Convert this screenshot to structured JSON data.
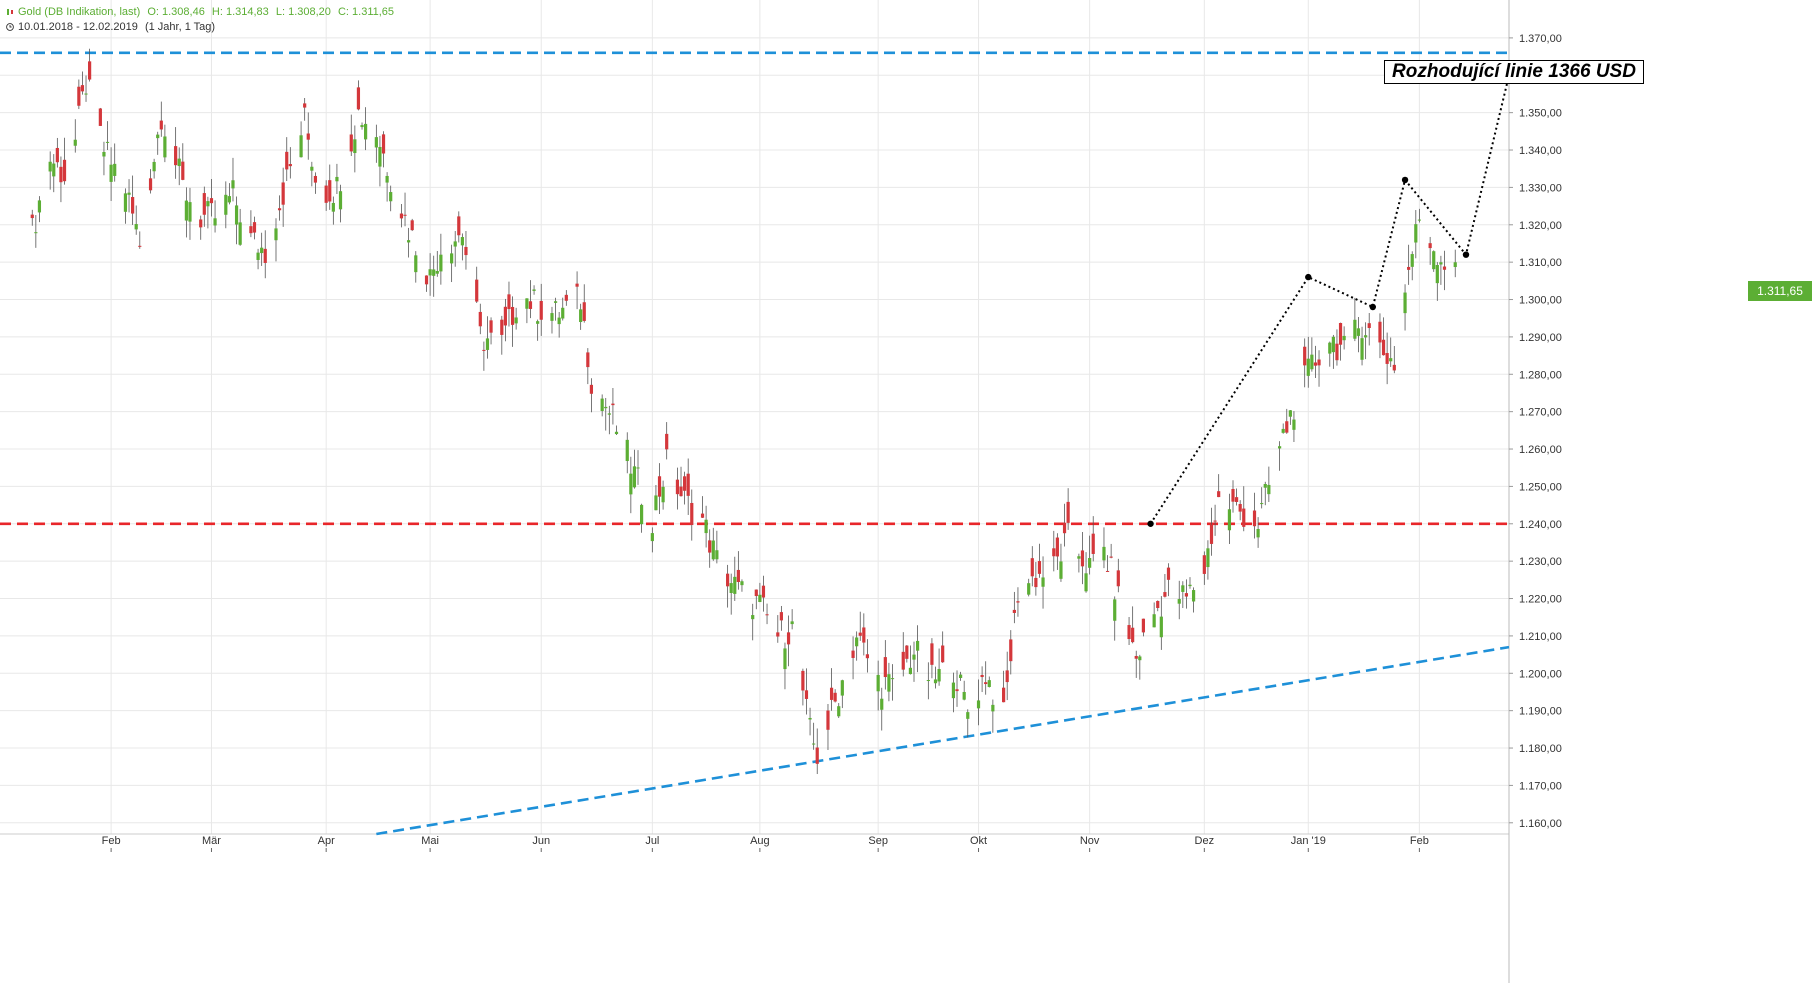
{
  "header": {
    "instrument": "Gold (DB Indikation, last)",
    "open": "O: 1.308,46",
    "high": "H: 1.314,83",
    "low": "L: 1.308,20",
    "close": "C: 1.311,65",
    "date_range": "10.01.2018 - 12.02.2019",
    "period": "(1 Jahr, 1 Tag)"
  },
  "annotation": "Rozhodující linie 1366 USD",
  "last_price_label": "1.311,65",
  "colors": {
    "up": "#5cae34",
    "down": "#d4373b",
    "support_line": "#1e90d8",
    "level_line": "#e8262a",
    "grid": "#e8e8e8"
  },
  "chart_data": {
    "type": "candlestick",
    "title": "Gold (DB Indikation, last)",
    "ylim": [
      1157,
      1378
    ],
    "y_ticks": [
      "1.160,00",
      "1.170,00",
      "1.180,00",
      "1.190,00",
      "1.200,00",
      "1.210,00",
      "1.220,00",
      "1.230,00",
      "1.240,00",
      "1.250,00",
      "1.260,00",
      "1.270,00",
      "1.280,00",
      "1.290,00",
      "1.300,00",
      "1.310,00",
      "1.320,00",
      "1.330,00",
      "1.340,00",
      "1.350,00",
      "1.360,00",
      "1.370,00"
    ],
    "y_tick_values": [
      1160,
      1170,
      1180,
      1190,
      1200,
      1210,
      1220,
      1230,
      1240,
      1250,
      1260,
      1270,
      1280,
      1290,
      1300,
      1310,
      1320,
      1330,
      1340,
      1350,
      1360,
      1370
    ],
    "x_start": "2018-01-10",
    "x_end": "2019-02-14",
    "x_ticks": [
      {
        "label": "Feb",
        "date": "2018-02-01"
      },
      {
        "label": "Mär",
        "date": "2018-03-01"
      },
      {
        "label": "Apr",
        "date": "2018-04-02"
      },
      {
        "label": "Mai",
        "date": "2018-05-01"
      },
      {
        "label": "Jun",
        "date": "2018-06-01"
      },
      {
        "label": "Jul",
        "date": "2018-07-02"
      },
      {
        "label": "Aug",
        "date": "2018-08-01"
      },
      {
        "label": "Sep",
        "date": "2018-09-03"
      },
      {
        "label": "Okt",
        "date": "2018-10-01"
      },
      {
        "label": "Nov",
        "date": "2018-11-01"
      },
      {
        "label": "Dez",
        "date": "2018-12-03"
      },
      {
        "label": "Jan '19",
        "date": "2019-01-01"
      },
      {
        "label": "Feb",
        "date": "2019-02-01"
      }
    ],
    "closes": [
      {
        "date": "2018-01-10",
        "close": 1318
      },
      {
        "date": "2018-01-15",
        "close": 1338
      },
      {
        "date": "2018-01-20",
        "close": 1332
      },
      {
        "date": "2018-01-25",
        "close": 1358
      },
      {
        "date": "2018-01-30",
        "close": 1340
      },
      {
        "date": "2018-02-05",
        "close": 1330
      },
      {
        "date": "2018-02-09",
        "close": 1315
      },
      {
        "date": "2018-02-15",
        "close": 1350
      },
      {
        "date": "2018-02-21",
        "close": 1330
      },
      {
        "date": "2018-02-26",
        "close": 1322
      },
      {
        "date": "2018-03-02",
        "close": 1322
      },
      {
        "date": "2018-03-07",
        "close": 1328
      },
      {
        "date": "2018-03-12",
        "close": 1316
      },
      {
        "date": "2018-03-16",
        "close": 1313
      },
      {
        "date": "2018-03-22",
        "close": 1332
      },
      {
        "date": "2018-03-27",
        "close": 1348
      },
      {
        "date": "2018-03-31",
        "close": 1328
      },
      {
        "date": "2018-04-05",
        "close": 1330
      },
      {
        "date": "2018-04-11",
        "close": 1350
      },
      {
        "date": "2018-04-16",
        "close": 1345
      },
      {
        "date": "2018-04-21",
        "close": 1330
      },
      {
        "date": "2018-04-25",
        "close": 1319
      },
      {
        "date": "2018-05-01",
        "close": 1306
      },
      {
        "date": "2018-05-04",
        "close": 1314
      },
      {
        "date": "2018-05-10",
        "close": 1318
      },
      {
        "date": "2018-05-15",
        "close": 1290
      },
      {
        "date": "2018-05-21",
        "close": 1288
      },
      {
        "date": "2018-05-26",
        "close": 1302
      },
      {
        "date": "2018-05-31",
        "close": 1298
      },
      {
        "date": "2018-06-05",
        "close": 1296
      },
      {
        "date": "2018-06-12",
        "close": 1300
      },
      {
        "date": "2018-06-15",
        "close": 1279
      },
      {
        "date": "2018-06-21",
        "close": 1268
      },
      {
        "date": "2018-06-27",
        "close": 1253
      },
      {
        "date": "2018-07-02",
        "close": 1242
      },
      {
        "date": "2018-07-06",
        "close": 1256
      },
      {
        "date": "2018-07-11",
        "close": 1246
      },
      {
        "date": "2018-07-16",
        "close": 1241
      },
      {
        "date": "2018-07-20",
        "close": 1230
      },
      {
        "date": "2018-07-26",
        "close": 1222
      },
      {
        "date": "2018-08-01",
        "close": 1218
      },
      {
        "date": "2018-08-06",
        "close": 1210
      },
      {
        "date": "2018-08-10",
        "close": 1212
      },
      {
        "date": "2018-08-15",
        "close": 1184
      },
      {
        "date": "2018-08-17",
        "close": 1178
      },
      {
        "date": "2018-08-22",
        "close": 1192
      },
      {
        "date": "2018-08-28",
        "close": 1210
      },
      {
        "date": "2018-09-03",
        "close": 1198
      },
      {
        "date": "2018-09-07",
        "close": 1196
      },
      {
        "date": "2018-09-13",
        "close": 1206
      },
      {
        "date": "2018-09-18",
        "close": 1198
      },
      {
        "date": "2018-09-24",
        "close": 1202
      },
      {
        "date": "2018-09-28",
        "close": 1190
      },
      {
        "date": "2018-10-03",
        "close": 1200
      },
      {
        "date": "2018-10-08",
        "close": 1188
      },
      {
        "date": "2018-10-12",
        "close": 1222
      },
      {
        "date": "2018-10-17",
        "close": 1226
      },
      {
        "date": "2018-10-22",
        "close": 1228
      },
      {
        "date": "2018-10-26",
        "close": 1236
      },
      {
        "date": "2018-11-01",
        "close": 1228
      },
      {
        "date": "2018-11-05",
        "close": 1233
      },
      {
        "date": "2018-11-09",
        "close": 1220
      },
      {
        "date": "2018-11-14",
        "close": 1204
      },
      {
        "date": "2018-11-19",
        "close": 1216
      },
      {
        "date": "2018-11-23",
        "close": 1222
      },
      {
        "date": "2018-11-28",
        "close": 1220
      },
      {
        "date": "2018-12-03",
        "close": 1228
      },
      {
        "date": "2018-12-07",
        "close": 1246
      },
      {
        "date": "2018-12-12",
        "close": 1244
      },
      {
        "date": "2018-12-18",
        "close": 1240
      },
      {
        "date": "2018-12-24",
        "close": 1260
      },
      {
        "date": "2018-12-28",
        "close": 1272
      },
      {
        "date": "2019-01-02",
        "close": 1282
      },
      {
        "date": "2019-01-07",
        "close": 1290
      },
      {
        "date": "2019-01-11",
        "close": 1286
      },
      {
        "date": "2019-01-16",
        "close": 1294
      },
      {
        "date": "2019-01-22",
        "close": 1286
      },
      {
        "date": "2019-01-25",
        "close": 1283
      },
      {
        "date": "2019-01-29",
        "close": 1308
      },
      {
        "date": "2019-02-01",
        "close": 1322
      },
      {
        "date": "2019-02-05",
        "close": 1314
      },
      {
        "date": "2019-02-08",
        "close": 1310
      },
      {
        "date": "2019-02-12",
        "close": 1311.65
      }
    ],
    "lines": [
      {
        "name": "resistance",
        "style": "dashed",
        "color": "#1e90d8",
        "from": {
          "date": "2018-01-01",
          "value": 1366
        },
        "to": {
          "date": "2019-02-26",
          "value": 1366
        }
      },
      {
        "name": "level",
        "style": "dashed",
        "color": "#e8262a",
        "from": {
          "date": "2018-01-01",
          "value": 1240
        },
        "to": {
          "date": "2019-02-26",
          "value": 1240
        }
      },
      {
        "name": "support",
        "style": "dashed",
        "color": "#1e90d8",
        "from": {
          "date": "2018-04-16",
          "value": 1157
        },
        "to": {
          "date": "2019-02-26",
          "value": 1207
        }
      }
    ],
    "projection": [
      {
        "date": "2018-11-18",
        "value": 1240
      },
      {
        "date": "2019-01-01",
        "value": 1306
      },
      {
        "date": "2019-01-19",
        "value": 1298
      },
      {
        "date": "2019-01-28",
        "value": 1332
      },
      {
        "date": "2019-02-14",
        "value": 1312
      },
      {
        "date": "2019-02-27",
        "value": 1364
      }
    ]
  }
}
